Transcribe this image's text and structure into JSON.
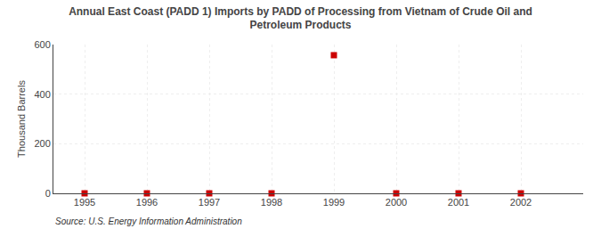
{
  "chart_data": {
    "type": "scatter",
    "title": "Annual East Coast (PADD 1) Imports by PADD of Processing from Vietnam of Crude Oil and\nPetroleum Products",
    "ylabel": "Thousand Barrels",
    "source": "Source: U.S. Energy Information Administration",
    "x": [
      1995,
      1996,
      1997,
      1998,
      1999,
      2000,
      2001,
      2002
    ],
    "values": [
      0,
      0,
      0,
      0,
      557,
      0,
      0,
      0
    ],
    "xlim": [
      1994.5,
      2003.0
    ],
    "xticks": [
      1995,
      1996,
      1997,
      1998,
      1999,
      2000,
      2001,
      2002
    ],
    "ylim": [
      0,
      600
    ],
    "yticks": [
      0,
      200,
      400,
      600
    ],
    "color": "#cc0000",
    "marker": "square",
    "grid": true
  }
}
